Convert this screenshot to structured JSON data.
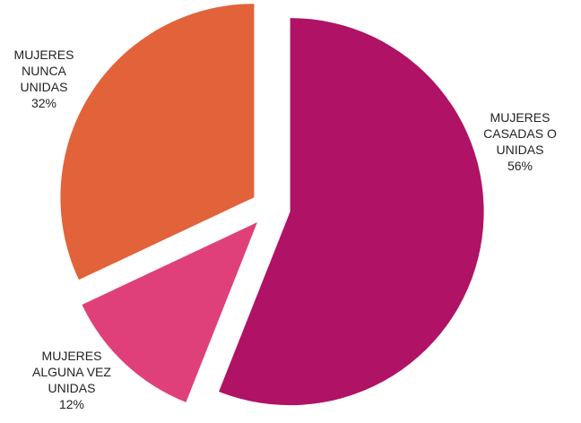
{
  "chart_data": {
    "type": "pie",
    "categories": [
      "MUJERES CASADAS O UNIDAS",
      "MUJERES ALGUNA VEZ UNIDAS",
      "MUJERES NUNCA UNIDAS"
    ],
    "values": [
      56,
      12,
      32
    ],
    "value_labels": [
      "56%",
      "12%",
      "32%"
    ],
    "colors": [
      "#b01265",
      "#e0407a",
      "#e2623a"
    ]
  }
}
